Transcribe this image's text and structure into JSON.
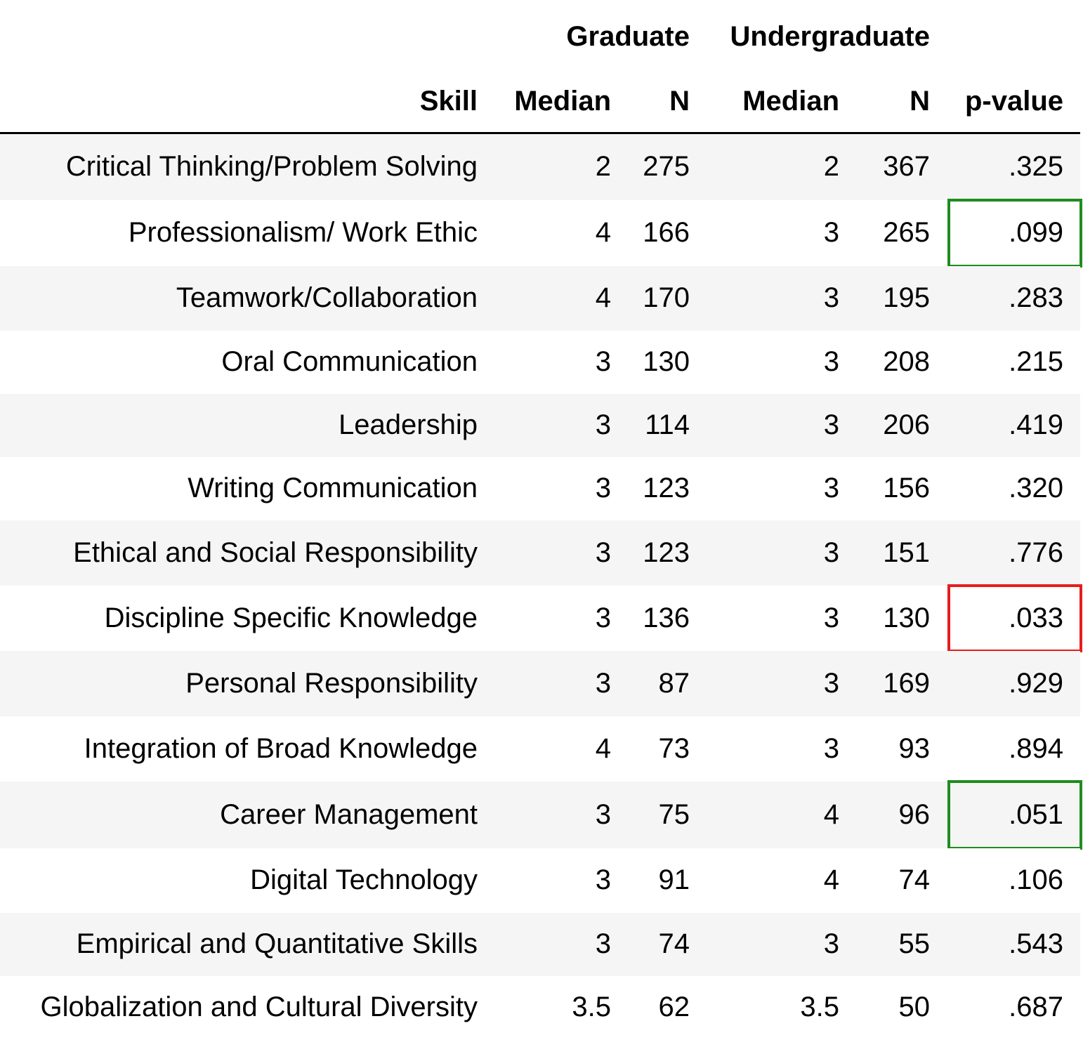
{
  "header": {
    "group_graduate": "Graduate",
    "group_undergraduate": "Undergraduate",
    "col_skill": "Skill",
    "col_grad_median": "Median",
    "col_grad_n": "N",
    "col_undergrad_median": "Median",
    "col_undergrad_n": "N",
    "col_pvalue": "p-value"
  },
  "highlight_colors": {
    "green": "#1e8c1e",
    "red": "#e81c1c"
  },
  "rows": [
    {
      "skill": "Critical Thinking/Problem Solving",
      "grad_median": "2",
      "grad_n": "275",
      "undergrad_median": "2",
      "undergrad_n": "367",
      "p_value": ".325",
      "highlight": ""
    },
    {
      "skill": "Professionalism/ Work Ethic",
      "grad_median": "4",
      "grad_n": "166",
      "undergrad_median": "3",
      "undergrad_n": "265",
      "p_value": ".099",
      "highlight": "green"
    },
    {
      "skill": "Teamwork/Collaboration",
      "grad_median": "4",
      "grad_n": "170",
      "undergrad_median": "3",
      "undergrad_n": "195",
      "p_value": ".283",
      "highlight": ""
    },
    {
      "skill": "Oral Communication",
      "grad_median": "3",
      "grad_n": "130",
      "undergrad_median": "3",
      "undergrad_n": "208",
      "p_value": ".215",
      "highlight": ""
    },
    {
      "skill": "Leadership",
      "grad_median": "3",
      "grad_n": "114",
      "undergrad_median": "3",
      "undergrad_n": "206",
      "p_value": ".419",
      "highlight": ""
    },
    {
      "skill": "Writing Communication",
      "grad_median": "3",
      "grad_n": "123",
      "undergrad_median": "3",
      "undergrad_n": "156",
      "p_value": ".320",
      "highlight": ""
    },
    {
      "skill": "Ethical and Social Responsibility",
      "grad_median": "3",
      "grad_n": "123",
      "undergrad_median": "3",
      "undergrad_n": "151",
      "p_value": ".776",
      "highlight": ""
    },
    {
      "skill": "Discipline Specific Knowledge",
      "grad_median": "3",
      "grad_n": "136",
      "undergrad_median": "3",
      "undergrad_n": "130",
      "p_value": ".033",
      "highlight": "red"
    },
    {
      "skill": "Personal Responsibility",
      "grad_median": "3",
      "grad_n": "87",
      "undergrad_median": "3",
      "undergrad_n": "169",
      "p_value": ".929",
      "highlight": ""
    },
    {
      "skill": "Integration of Broad Knowledge",
      "grad_median": "4",
      "grad_n": "73",
      "undergrad_median": "3",
      "undergrad_n": "93",
      "p_value": ".894",
      "highlight": ""
    },
    {
      "skill": "Career Management",
      "grad_median": "3",
      "grad_n": "75",
      "undergrad_median": "4",
      "undergrad_n": "96",
      "p_value": ".051",
      "highlight": "green"
    },
    {
      "skill": "Digital Technology",
      "grad_median": "3",
      "grad_n": "91",
      "undergrad_median": "4",
      "undergrad_n": "74",
      "p_value": ".106",
      "highlight": ""
    },
    {
      "skill": "Empirical and Quantitative Skills",
      "grad_median": "3",
      "grad_n": "74",
      "undergrad_median": "3",
      "undergrad_n": "55",
      "p_value": ".543",
      "highlight": ""
    },
    {
      "skill": "Globalization and Cultural Diversity",
      "grad_median": "3.5",
      "grad_n": "62",
      "undergrad_median": "3.5",
      "undergrad_n": "50",
      "p_value": ".687",
      "highlight": ""
    }
  ]
}
